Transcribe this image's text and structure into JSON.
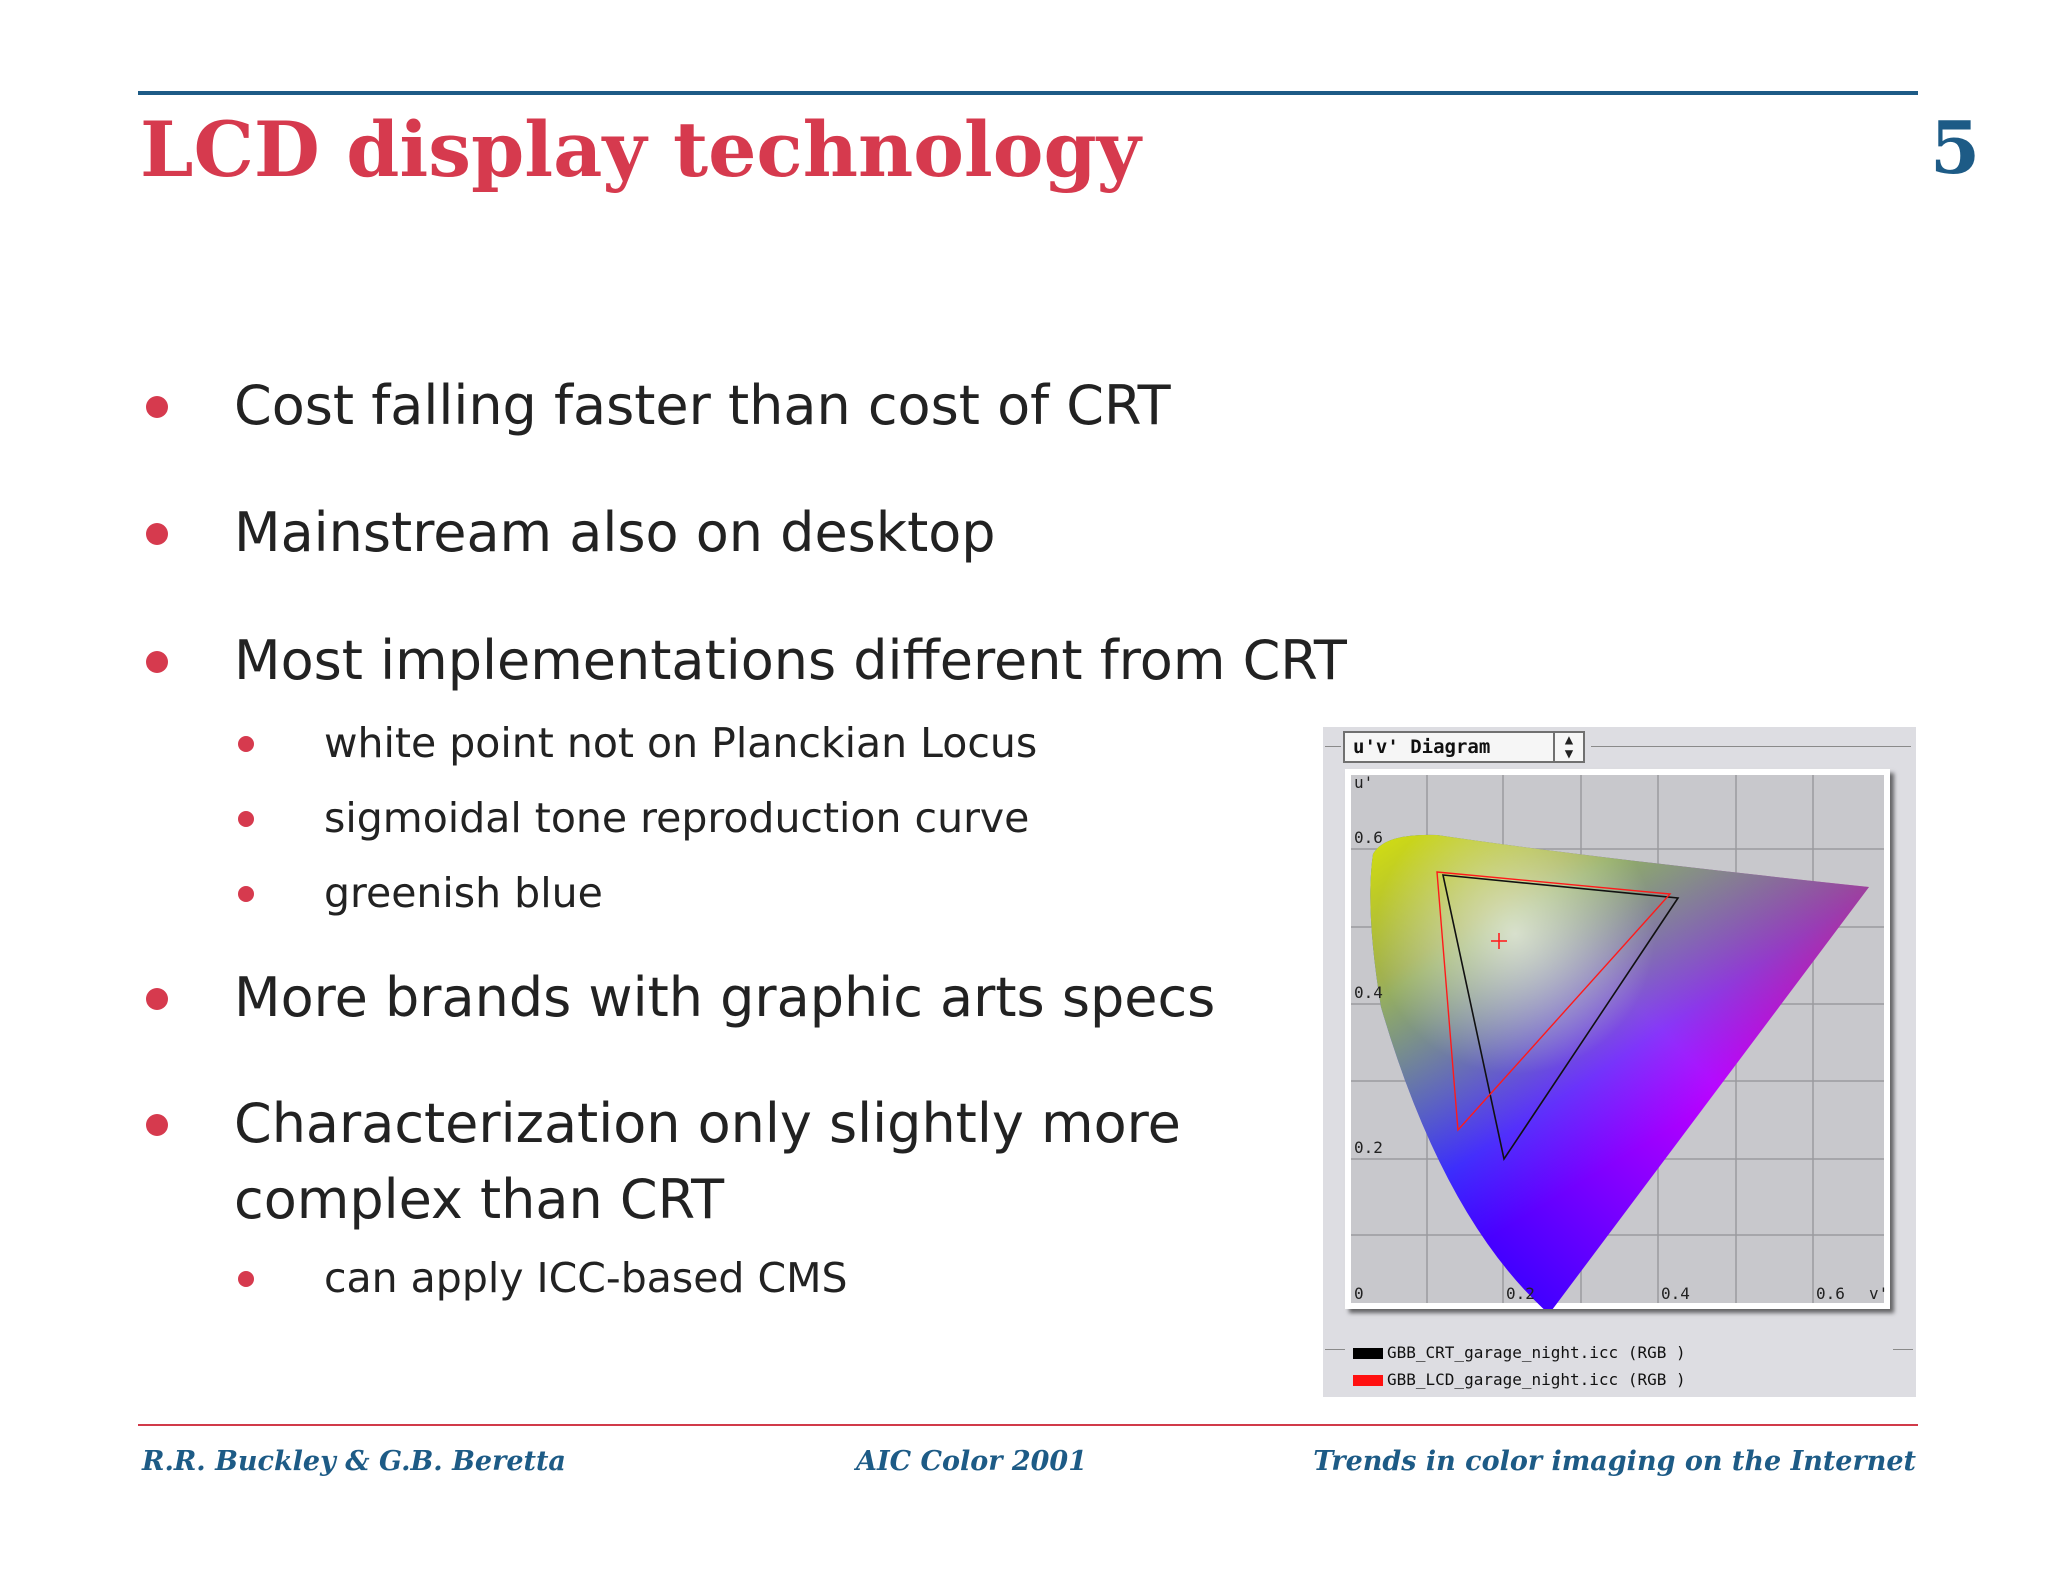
{
  "slide": {
    "title": "LCD display technology",
    "number": "5"
  },
  "bullets": [
    {
      "text": "Cost falling faster than cost of CRT"
    },
    {
      "text": "Mainstream also on desktop"
    },
    {
      "text": "Most implementations different from CRT",
      "sub": [
        "white point not on Planckian Locus",
        "sigmoidal tone reproduction curve",
        "greenish blue"
      ]
    },
    {
      "text": "More brands with graphic arts specs"
    },
    {
      "text_line1": "Characterization only slightly more",
      "text_line2": "complex than CRT",
      "sub": [
        "can apply ICC-based CMS"
      ]
    }
  ],
  "diagram": {
    "dropdown_label": "u'v' Diagram",
    "y_axis_label": "u'",
    "x_axis_label": "v'",
    "y_ticks": [
      "0.6",
      "0.4",
      "0.2"
    ],
    "x_ticks": [
      "0",
      "0.2",
      "0.4",
      "0.6"
    ],
    "legend": [
      {
        "label": "GBB_CRT_garage_night.icc (RGB )",
        "color": "#000000"
      },
      {
        "label": "GBB_LCD_garage_night.icc (RGB )",
        "color": "#ff1010"
      }
    ]
  },
  "footer": {
    "left": "R.R. Buckley & G.B. Beretta",
    "center": "AIC Color 2001",
    "right": "Trends in color imaging on the Internet"
  }
}
